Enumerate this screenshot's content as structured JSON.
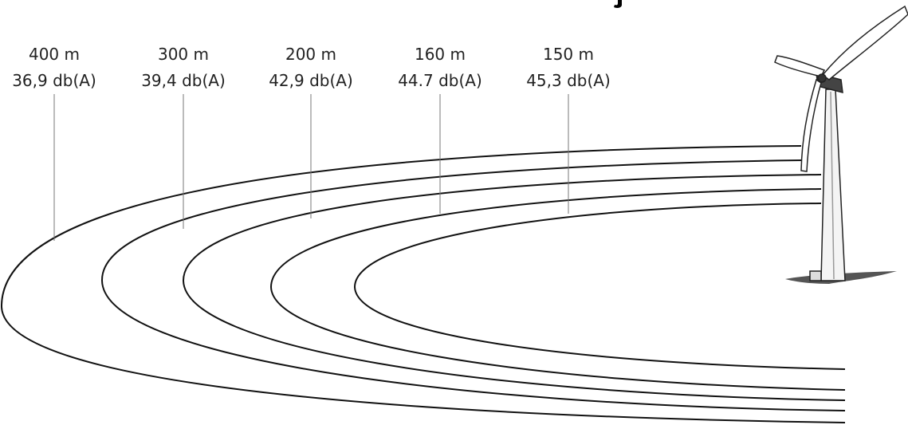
{
  "labels": [
    {
      "distance": "400 m",
      "level": "36,9 db(A)"
    },
    {
      "distance": "300 m",
      "level": "39,4 db(A)"
    },
    {
      "distance": "200 m",
      "level": "42,9 db(A)"
    },
    {
      "distance": "160 m",
      "level": "44.7 db(A)"
    },
    {
      "distance": "150 m",
      "level": "45,3 db(A)"
    }
  ]
}
